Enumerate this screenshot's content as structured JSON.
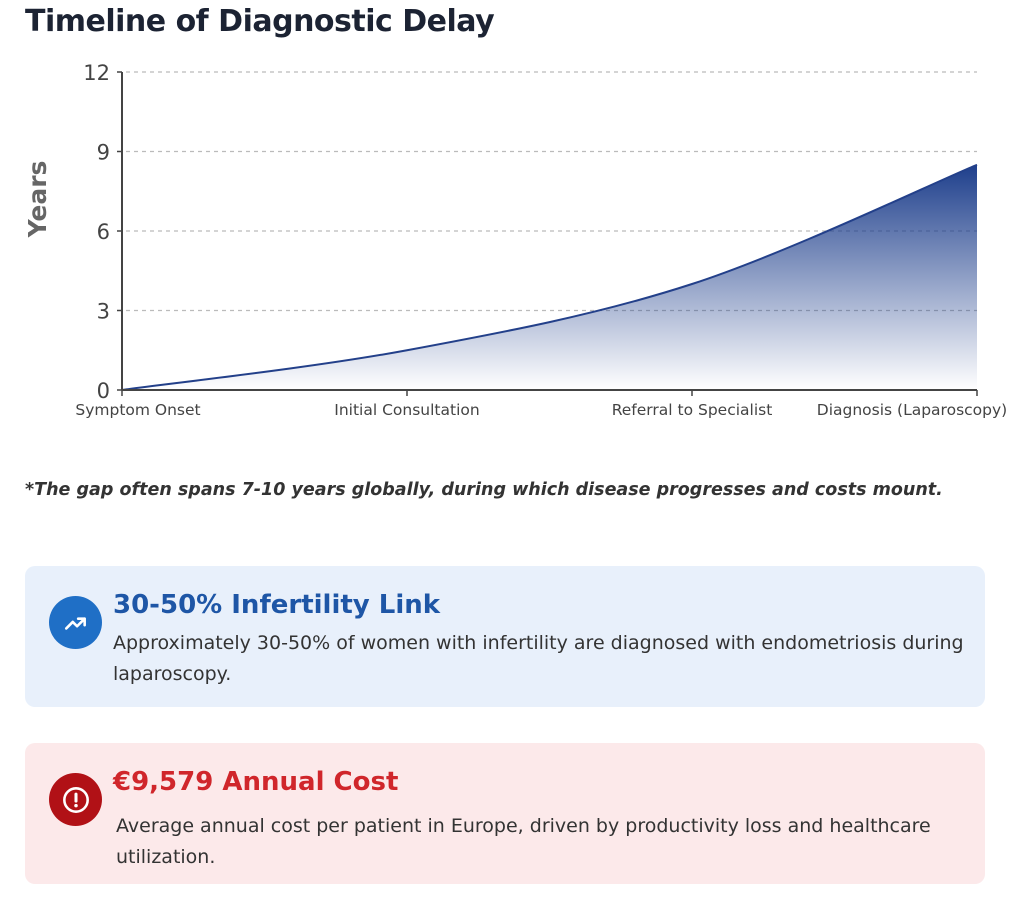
{
  "title": "Timeline of Diagnostic Delay",
  "chart_data": {
    "type": "area",
    "title": "Timeline of Diagnostic Delay",
    "xlabel": "",
    "ylabel": "Years",
    "categories": [
      "Symptom Onset",
      "Initial Consultation",
      "Referral to Specialist",
      "Diagnosis (Laparoscopy)"
    ],
    "values": [
      0,
      1.5,
      4,
      8.5
    ],
    "ylim": [
      0,
      12
    ],
    "yticks": [
      0,
      3,
      6,
      9,
      12
    ],
    "grid": true,
    "colors": {
      "line": "#23408a",
      "fill": "#1e3f8c"
    }
  },
  "note": "*The gap often spans 7-10 years globally, during which disease progresses and costs mount.",
  "cards": [
    {
      "icon": "trending-up-icon",
      "title": "30-50% Infertility Link",
      "body": "Approximately 30-50% of women with infertility are diagnosed with endometriosis during laparoscopy.",
      "color": "#1e56a6"
    },
    {
      "icon": "alert-circle-icon",
      "title": "€9,579 Annual Cost",
      "body": "Average annual cost per patient in Europe, driven by productivity loss and healthcare utilization.",
      "color": "#d0262b"
    }
  ]
}
